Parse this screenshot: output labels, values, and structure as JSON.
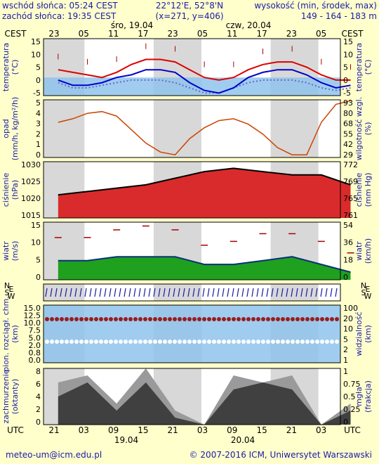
{
  "header": {
    "sunrise": "wschód słońca: 05:24 CEST",
    "sunset": "zachód słońca: 19:35 CEST",
    "coords": "22°12'E, 52°8'N",
    "grid": "(x=271,  y=406)",
    "height_title": "wysokość (min, środek, max)",
    "height_values": "149 - 164 - 183 m"
  },
  "time_axis": {
    "top_left_label": "CEST",
    "top_right_label": "CEST",
    "top_hours": [
      "23",
      "05",
      "11",
      "17",
      "23",
      "05",
      "11",
      "17",
      "23",
      "05"
    ],
    "days_top": [
      "śro, 19.04",
      "czw, 20.04"
    ],
    "bottom_left_label": "UTC",
    "bottom_right_label": "UTC",
    "bottom_hours": [
      "21",
      "03",
      "09",
      "15",
      "21",
      "03",
      "09",
      "15",
      "21",
      "03"
    ],
    "days_bottom": [
      "19.04",
      "20.04"
    ]
  },
  "panels": {
    "temperature": {
      "left_label": "temperatura",
      "left_unit": "(°C)",
      "right_label": "temperatura",
      "right_unit": "(°C)",
      "ticks": [
        "15",
        "10",
        "5",
        "0",
        "-5"
      ]
    },
    "precip": {
      "left_label": "opad",
      "left_unit": "(mm/h, kg/m²/h)",
      "right_label": "wilgotność wzgl.",
      "right_unit": "(%)",
      "ticks_left": [
        "5",
        "4",
        "3",
        "2",
        "1",
        "0"
      ],
      "ticks_right": [
        "93",
        "80",
        "68",
        "55",
        "42",
        "29"
      ]
    },
    "pressure": {
      "left_label": "ciśnienie",
      "left_unit": "(hPa)",
      "right_label": "ciśnienie",
      "right_unit": "(mm Hg)",
      "ticks_left": [
        "1030",
        "1025",
        "1020",
        "1015"
      ],
      "ticks_right": [
        "772",
        "769",
        "765",
        "761"
      ]
    },
    "wind": {
      "left_label": "wiatr",
      "left_unit": "(m/s)",
      "right_label": "wiatr",
      "right_unit": "(km/h)",
      "ticks_left": [
        "15",
        "10",
        "5",
        "0"
      ],
      "ticks_right": [
        "54",
        "36",
        "18",
        "0"
      ]
    },
    "winddir": {
      "compass": [
        "N",
        "E",
        "S",
        "W"
      ]
    },
    "visibility": {
      "left_label": "pion. rozciągł. chm.",
      "left_unit": "(km)",
      "right_label": "widzialność",
      "right_unit": "(km)",
      "ticks_left": [
        "15.0",
        "12.5",
        "10.0",
        "7.5",
        "5.0",
        "2.0",
        "0.8",
        "0.0"
      ],
      "ticks_right": [
        "100",
        "20",
        "10",
        "5",
        "2",
        "1"
      ]
    },
    "cloud": {
      "left_label": "zachmurzenie",
      "left_unit": "(oktanty)",
      "right_label": "mgła",
      "right_unit": "(frakcja)",
      "ticks_left": [
        "8",
        "6",
        "4",
        "2",
        "0"
      ],
      "ticks_right": [
        "1",
        "0.75",
        "0.5",
        "0.25",
        "0"
      ]
    }
  },
  "footer": {
    "email": "meteo-um@icm.edu.pl",
    "copyright": "© 2007-2016 ICM, Uniwersytet Warszawski"
  },
  "colors": {
    "text_blue": "#1a1aa6",
    "background": "#ffffcc",
    "night": "#d8d8d8",
    "temp_max": "#dd0000",
    "temp_mean": "#0000cc"
  },
  "chart_data": [
    {
      "type": "line",
      "title": "temperatura",
      "x": [
        0,
        3,
        6,
        9,
        12,
        15,
        18,
        21,
        24,
        27,
        30,
        33,
        36,
        39,
        42,
        45,
        48,
        51,
        54,
        57,
        60
      ],
      "series": [
        {
          "values": [
            3,
            2,
            1,
            0,
            2,
            5,
            7,
            7,
            6,
            3,
            0,
            -1,
            0,
            3,
            5,
            6,
            6,
            4,
            1,
            -1,
            -1
          ]
        },
        {
          "values": [
            -1,
            -3,
            -3,
            -2,
            0,
            1,
            3,
            3,
            2,
            -2,
            -5,
            -6,
            -4,
            0,
            2,
            3,
            3,
            1,
            -2,
            -4,
            -3
          ]
        },
        {
          "values": [
            -2,
            -4,
            -4,
            -3,
            -2,
            -1,
            -1,
            -1,
            -2,
            -4,
            -6,
            -6,
            -4,
            -2,
            -1,
            -1,
            -1,
            -2,
            -4,
            -5,
            -4
          ]
        }
      ],
      "ylim": [
        -7,
        15
      ]
    },
    {
      "type": "line",
      "title": "opad / wilgotność wzgl.",
      "x": [
        0,
        3,
        6,
        9,
        12,
        15,
        18,
        21,
        24,
        27,
        30,
        33,
        36,
        39,
        42,
        45,
        48,
        51,
        54,
        57,
        60
      ],
      "series": [
        {
          "values": [
            68,
            72,
            78,
            80,
            75,
            60,
            45,
            35,
            32,
            50,
            62,
            70,
            72,
            66,
            55,
            40,
            32,
            32,
            68,
            88,
            92
          ]
        }
      ],
      "ylim": [
        29,
        93
      ]
    },
    {
      "type": "area",
      "title": "ciśnienie",
      "x": [
        0,
        6,
        12,
        18,
        24,
        30,
        36,
        42,
        48,
        54,
        60
      ],
      "series": [
        {
          "values": [
            1022,
            1023,
            1024,
            1025,
            1027,
            1029,
            1030,
            1029,
            1028,
            1028,
            1025
          ]
        }
      ],
      "ylim": [
        1015,
        1032
      ]
    },
    {
      "type": "area",
      "title": "wiatr",
      "x": [
        0,
        6,
        12,
        18,
        24,
        30,
        36,
        42,
        48,
        54,
        60
      ],
      "series": [
        {
          "values": [
            5,
            5,
            6,
            6,
            6,
            4,
            4,
            5,
            6,
            4,
            2
          ]
        },
        {
          "values": [
            11,
            11,
            13,
            14,
            13,
            9,
            10,
            12,
            12,
            10,
            7
          ]
        }
      ],
      "ylim": [
        0,
        15
      ]
    },
    {
      "type": "line",
      "title": "zachmurzenie",
      "x": [
        0,
        6,
        12,
        18,
        24,
        30,
        36,
        42,
        48,
        54,
        60
      ],
      "series": [
        {
          "values": [
            6,
            7,
            3,
            8,
            2,
            0,
            7,
            6,
            7,
            0,
            3
          ]
        },
        {
          "values": [
            4,
            6,
            2,
            6,
            1,
            0,
            5,
            6,
            5,
            0,
            2
          ]
        }
      ],
      "ylim": [
        0,
        8
      ]
    }
  ]
}
